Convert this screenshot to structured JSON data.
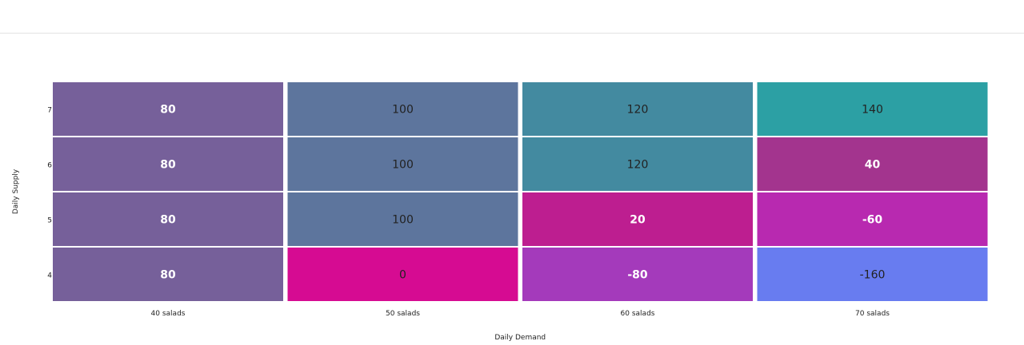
{
  "chart_data": {
    "type": "heatmap",
    "xlabel": "Daily Demand",
    "ylabel": "Daily Supply",
    "x_categories": [
      "40 salads",
      "50 salads",
      "60 salads",
      "70 salads"
    ],
    "y_categories": [
      "7",
      "6",
      "5",
      "4"
    ],
    "values": [
      [
        80,
        100,
        120,
        140
      ],
      [
        80,
        100,
        120,
        40
      ],
      [
        80,
        100,
        20,
        -60
      ],
      [
        80,
        0,
        -80,
        -160
      ]
    ],
    "cell_colors": [
      [
        "#76609a",
        "#5d759d",
        "#438aa0",
        "#2ca0a4"
      ],
      [
        "#76609a",
        "#5d759d",
        "#438aa0",
        "#a3348e"
      ],
      [
        "#76609a",
        "#5d759d",
        "#bd1e90",
        "#b829b0"
      ],
      [
        "#76609a",
        "#d60b92",
        "#a43abb",
        "#687cf0"
      ]
    ],
    "label_colors": [
      [
        "#ffffff",
        "#222222",
        "#222222",
        "#222222"
      ],
      [
        "#ffffff",
        "#222222",
        "#222222",
        "#ffffff"
      ],
      [
        "#ffffff",
        "#222222",
        "#ffffff",
        "#ffffff"
      ],
      [
        "#ffffff",
        "#222222",
        "#ffffff",
        "#222222"
      ]
    ],
    "label_weights": [
      [
        "bold",
        "normal",
        "normal",
        "normal"
      ],
      [
        "bold",
        "normal",
        "normal",
        "bold"
      ],
      [
        "bold",
        "normal",
        "bold",
        "bold"
      ],
      [
        "bold",
        "normal",
        "bold",
        "normal"
      ]
    ],
    "grid": false,
    "legend": "none"
  }
}
